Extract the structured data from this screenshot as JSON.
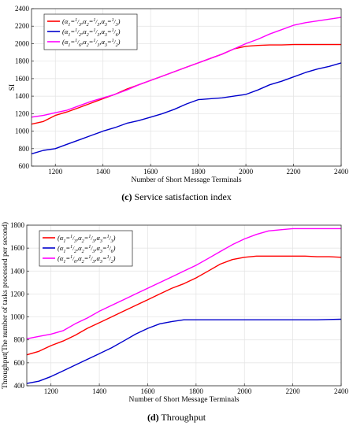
{
  "chart_data": [
    {
      "type": "line",
      "panel_letter": "(c)",
      "caption": "Service satisfaction index",
      "xlabel": "Number of Short Message Terminals",
      "ylabel": "SI",
      "xlim": [
        1100,
        2400
      ],
      "ylim": [
        600,
        2400
      ],
      "xticks": [
        1200,
        1400,
        1600,
        1800,
        2000,
        2200,
        2400
      ],
      "yticks": [
        600,
        800,
        1000,
        1200,
        1400,
        1600,
        1800,
        2000,
        2200,
        2400
      ],
      "grid": true,
      "legend_position": "top-left",
      "series": [
        {
          "name": "(α1=1/3,α2=1/3,α3=1/3)",
          "color": "#ff0000",
          "x": [
            1100,
            1150,
            1200,
            1250,
            1300,
            1350,
            1400,
            1450,
            1500,
            1550,
            1600,
            1650,
            1700,
            1750,
            1800,
            1850,
            1900,
            1950,
            2000,
            2050,
            2100,
            2150,
            2200,
            2250,
            2300,
            2350,
            2400
          ],
          "y": [
            1080,
            1110,
            1180,
            1220,
            1270,
            1320,
            1370,
            1420,
            1480,
            1530,
            1580,
            1630,
            1680,
            1730,
            1780,
            1830,
            1880,
            1940,
            1970,
            1980,
            1985,
            1985,
            1990,
            1990,
            1990,
            1990,
            1990
          ]
        },
        {
          "name": "(α1=1/2,α2=1/3,α3=1/6)",
          "color": "#0000cc",
          "x": [
            1100,
            1150,
            1200,
            1250,
            1300,
            1350,
            1400,
            1450,
            1500,
            1550,
            1600,
            1650,
            1700,
            1750,
            1800,
            1850,
            1900,
            1950,
            2000,
            2050,
            2100,
            2150,
            2200,
            2250,
            2300,
            2350,
            2400
          ],
          "y": [
            740,
            780,
            800,
            850,
            900,
            950,
            1000,
            1040,
            1090,
            1120,
            1160,
            1200,
            1250,
            1310,
            1360,
            1370,
            1380,
            1400,
            1420,
            1470,
            1530,
            1570,
            1620,
            1670,
            1710,
            1740,
            1780
          ]
        },
        {
          "name": "(α1=1/6,α2=1/3,α3=1/2)",
          "color": "#ff00ff",
          "x": [
            1100,
            1150,
            1200,
            1250,
            1300,
            1350,
            1400,
            1450,
            1500,
            1550,
            1600,
            1650,
            1700,
            1750,
            1800,
            1850,
            1900,
            1950,
            2000,
            2050,
            2100,
            2150,
            2200,
            2250,
            2300,
            2350,
            2400
          ],
          "y": [
            1160,
            1180,
            1210,
            1240,
            1290,
            1340,
            1380,
            1420,
            1470,
            1530,
            1580,
            1630,
            1680,
            1730,
            1780,
            1830,
            1880,
            1940,
            2000,
            2050,
            2110,
            2160,
            2210,
            2240,
            2260,
            2280,
            2300
          ]
        }
      ]
    },
    {
      "type": "line",
      "panel_letter": "(d)",
      "caption": "Throughput",
      "xlabel": "Number of Short Message Terminals",
      "ylabel": "Throughput(The number of tasks processed per second)",
      "xlim": [
        1100,
        2400
      ],
      "ylim": [
        400,
        1800
      ],
      "xticks": [
        1200,
        1400,
        1600,
        1800,
        2000,
        2200,
        2400
      ],
      "yticks": [
        400,
        600,
        800,
        1000,
        1200,
        1400,
        1600,
        1800
      ],
      "grid": true,
      "legend_position": "top-left",
      "series": [
        {
          "name": "(α1=1/3,α2=1/3,α3=1/3)",
          "color": "#ff0000",
          "x": [
            1100,
            1150,
            1200,
            1250,
            1300,
            1350,
            1400,
            1450,
            1500,
            1550,
            1600,
            1650,
            1700,
            1750,
            1800,
            1850,
            1900,
            1950,
            2000,
            2050,
            2100,
            2150,
            2200,
            2250,
            2300,
            2350,
            2400
          ],
          "y": [
            670,
            700,
            750,
            790,
            840,
            900,
            950,
            1000,
            1050,
            1100,
            1150,
            1200,
            1250,
            1290,
            1340,
            1400,
            1460,
            1500,
            1520,
            1530,
            1530,
            1530,
            1530,
            1530,
            1525,
            1525,
            1520
          ]
        },
        {
          "name": "(α1=1/2,α2=1/3,α3=1/6)",
          "color": "#0000cc",
          "x": [
            1100,
            1150,
            1200,
            1250,
            1300,
            1350,
            1400,
            1450,
            1500,
            1550,
            1600,
            1650,
            1700,
            1750,
            1800,
            1850,
            1900,
            1950,
            2000,
            2050,
            2100,
            2150,
            2200,
            2250,
            2300,
            2350,
            2400
          ],
          "y": [
            420,
            440,
            480,
            530,
            580,
            630,
            680,
            730,
            790,
            850,
            900,
            940,
            960,
            975,
            975,
            975,
            975,
            975,
            975,
            975,
            975,
            975,
            975,
            975,
            975,
            978,
            980
          ]
        },
        {
          "name": "(α1=1/6,α2=1/3,α3=1/2)",
          "color": "#ff00ff",
          "x": [
            1100,
            1150,
            1200,
            1250,
            1300,
            1350,
            1400,
            1450,
            1500,
            1550,
            1600,
            1650,
            1700,
            1750,
            1800,
            1850,
            1900,
            1950,
            2000,
            2050,
            2100,
            2150,
            2200,
            2250,
            2300,
            2350,
            2400
          ],
          "y": [
            810,
            830,
            850,
            880,
            940,
            990,
            1050,
            1100,
            1150,
            1200,
            1250,
            1300,
            1350,
            1400,
            1450,
            1510,
            1570,
            1630,
            1680,
            1720,
            1750,
            1760,
            1770,
            1770,
            1770,
            1770,
            1770
          ]
        }
      ]
    }
  ]
}
